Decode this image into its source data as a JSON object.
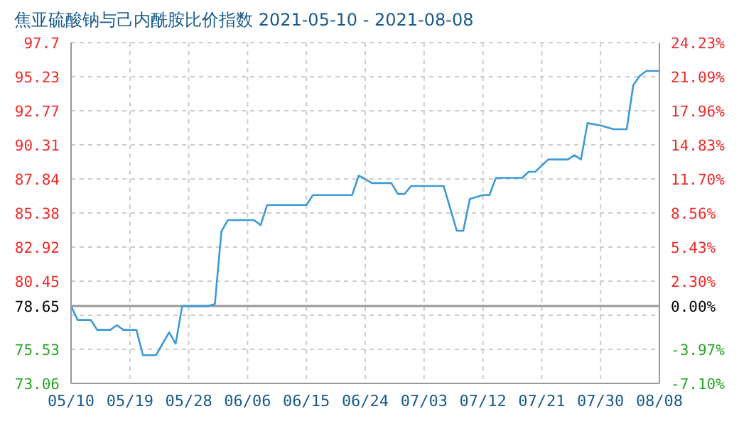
{
  "chart_data": {
    "type": "line",
    "title": "焦亚硫酸钠与己内酰胺比价指数 2021-05-10 - 2021-08-08",
    "x": [
      "2021-05-10",
      "2021-05-11",
      "2021-05-13",
      "2021-05-14",
      "2021-05-16",
      "2021-05-17",
      "2021-05-18",
      "2021-05-20",
      "2021-05-21",
      "2021-05-23",
      "2021-05-25",
      "2021-05-26",
      "2021-05-27",
      "2021-05-31",
      "2021-06-01",
      "2021-06-02",
      "2021-06-03",
      "2021-06-07",
      "2021-06-08",
      "2021-06-09",
      "2021-06-15",
      "2021-06-16",
      "2021-06-22",
      "2021-06-23",
      "2021-06-24",
      "2021-06-25",
      "2021-06-28",
      "2021-06-29",
      "2021-06-30",
      "2021-07-01",
      "2021-07-06",
      "2021-07-07",
      "2021-07-08",
      "2021-07-09",
      "2021-07-10",
      "2021-07-12",
      "2021-07-13",
      "2021-07-14",
      "2021-07-18",
      "2021-07-19",
      "2021-07-20",
      "2021-07-22",
      "2021-07-25",
      "2021-07-26",
      "2021-07-27",
      "2021-07-28",
      "2021-07-30",
      "2021-08-01",
      "2021-08-03",
      "2021-08-04",
      "2021-08-05",
      "2021-08-06",
      "2021-08-08"
    ],
    "series": [
      {
        "color": "#3d9ad6",
        "values": [
          78.65,
          77.65,
          77.65,
          76.93,
          76.93,
          77.27,
          76.93,
          76.93,
          75.1,
          75.1,
          76.75,
          75.93,
          78.65,
          78.65,
          78.8,
          84.05,
          84.87,
          84.87,
          84.5,
          85.96,
          85.96,
          86.68,
          86.68,
          88.08,
          87.84,
          87.54,
          87.54,
          86.75,
          86.75,
          87.33,
          87.33,
          85.72,
          84.1,
          84.1,
          86.4,
          86.68,
          86.68,
          87.92,
          87.92,
          88.36,
          88.36,
          89.25,
          89.25,
          89.56,
          89.25,
          91.88,
          91.71,
          91.44,
          91.44,
          94.62,
          95.3,
          95.65,
          95.65
        ]
      }
    ],
    "xlim": [
      "2021-05-10",
      "2021-08-08"
    ],
    "xticks": [
      {
        "value": "2021-05-10",
        "label": "05/10"
      },
      {
        "value": "2021-05-19",
        "label": "05/19"
      },
      {
        "value": "2021-05-28",
        "label": "05/28"
      },
      {
        "value": "2021-06-06",
        "label": "06/06"
      },
      {
        "value": "2021-06-15",
        "label": "06/15"
      },
      {
        "value": "2021-06-24",
        "label": "06/24"
      },
      {
        "value": "2021-07-03",
        "label": "07/03"
      },
      {
        "value": "2021-07-12",
        "label": "07/12"
      },
      {
        "value": "2021-07-21",
        "label": "07/21"
      },
      {
        "value": "2021-07-30",
        "label": "07/30"
      },
      {
        "value": "2021-08-08",
        "label": "08/08"
      }
    ],
    "ylim": [
      73.06,
      97.7
    ],
    "yticks": [
      73.06,
      75.53,
      {
        "value": 77.99,
        "label": null
      },
      78.65,
      80.45,
      82.92,
      85.38,
      87.84,
      90.31,
      92.77,
      95.23,
      97.7
    ],
    "y2lim": [
      -7.1,
      24.23
    ],
    "y2ticks": [
      {
        "value": -7.1,
        "label": "-7.10%"
      },
      {
        "value": -3.97,
        "label": "-3.97%"
      },
      {
        "value": 0,
        "label": "0.00%"
      },
      {
        "value": 2.3,
        "label": "2.30%"
      },
      {
        "value": 5.43,
        "label": "5.43%"
      },
      {
        "value": 8.56,
        "label": "8.56%"
      },
      {
        "value": 11.7,
        "label": "11.70%"
      },
      {
        "value": 14.83,
        "label": "14.83%"
      },
      {
        "value": 17.96,
        "label": "17.96%"
      },
      {
        "value": 21.09,
        "label": "21.09%"
      },
      {
        "value": 24.23,
        "label": "24.23%"
      }
    ],
    "ref_lines": [
      {
        "axis": "y",
        "value": 78.65,
        "color": "#999999"
      }
    ],
    "grid": true,
    "marker": "none",
    "line_style": "solid"
  }
}
